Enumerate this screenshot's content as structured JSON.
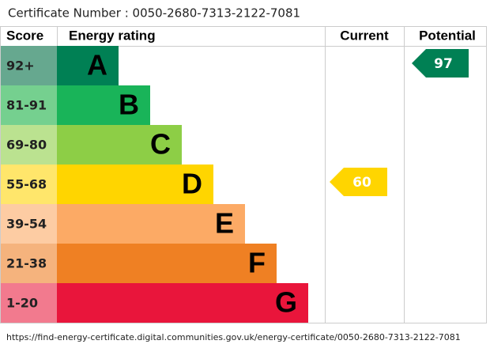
{
  "certificate": "Certificate Number : 0050-2680-7313-2122-7081",
  "headers": {
    "score": "Score",
    "rating": "Energy rating",
    "current": "Current",
    "potential": "Potential"
  },
  "bands": [
    {
      "score": "92+",
      "letter": "A",
      "color": "#008054",
      "score_color": "#66a88f"
    },
    {
      "score": "81-91",
      "letter": "B",
      "color": "#19b459",
      "score_color": "#75d08f"
    },
    {
      "score": "69-80",
      "letter": "C",
      "color": "#8dce46",
      "score_color": "#bbe290"
    },
    {
      "score": "55-68",
      "letter": "D",
      "color": "#ffd500",
      "score_color": "#ffe66b"
    },
    {
      "score": "39-54",
      "letter": "E",
      "color": "#fcaa65",
      "score_color": "#fdcca3"
    },
    {
      "score": "21-38",
      "letter": "F",
      "color": "#ef8023",
      "score_color": "#f5b37d"
    },
    {
      "score": "1-20",
      "letter": "G",
      "color": "#e9153b",
      "score_color": "#f27a8e"
    }
  ],
  "current": {
    "value": 60,
    "color": "#ffd500"
  },
  "potential": {
    "value": 97,
    "color": "#008054"
  },
  "url": "https://find-energy-certificate.digital.communities.gov.uk/energy-certificate/0050-2680-7313-2122-7081"
}
